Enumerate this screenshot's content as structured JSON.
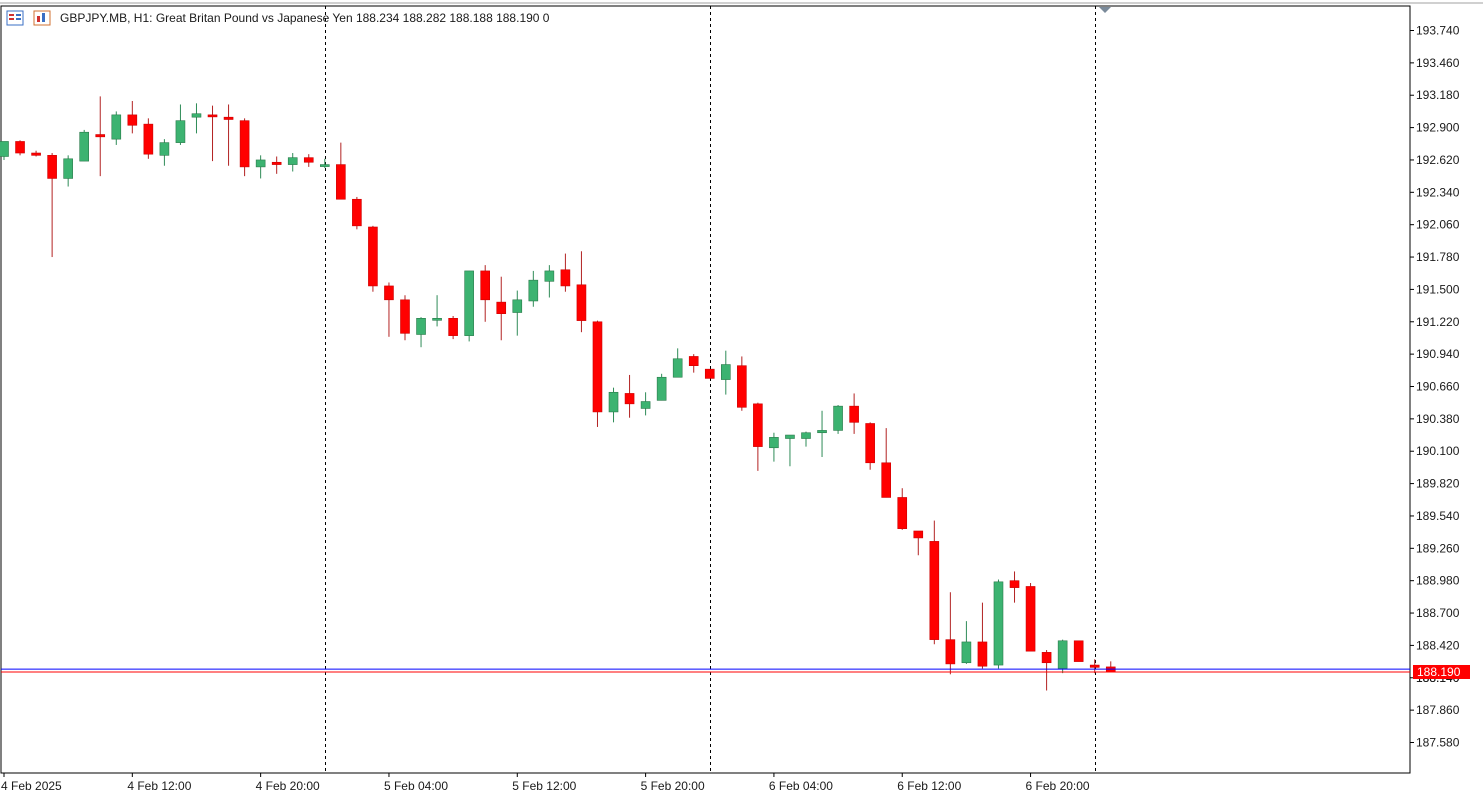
{
  "header": {
    "symbol_line": "GBPJPY.MB, H1:  Great Britan Pound vs Japanese Yen  188.234 188.282 188.188 188.190  0",
    "icon_menu": "chart-menu-icon",
    "icon_template": "chart-template-icon"
  },
  "colors": {
    "bull_body": "#3cb371",
    "bear_body": "#ff0000",
    "bull_wick": "#2e8b57",
    "bear_wick": "#b22222",
    "bid_line": "#0000ff",
    "ask_line": "#ff0000",
    "axis_text": "#1a1a1a",
    "separator": "#000000",
    "price_tag_bg": "#ff0000"
  },
  "chart_data": {
    "type": "candlestick",
    "title": "GBPJPY.MB, H1:  Great Britan Pound vs Japanese Yen",
    "ylim": [
      187.36,
      193.97
    ],
    "y_ticks": [
      193.74,
      193.46,
      193.18,
      192.9,
      192.62,
      192.34,
      192.06,
      191.78,
      191.5,
      191.22,
      190.94,
      190.66,
      190.38,
      190.1,
      189.82,
      189.54,
      189.26,
      188.98,
      188.7,
      188.42,
      188.14,
      187.86,
      187.58
    ],
    "y_tick_labels": [
      "193.740",
      "193.460",
      "193.180",
      "192.900",
      "192.620",
      "192.340",
      "192.060",
      "191.780",
      "191.500",
      "191.220",
      "190.940",
      "190.660",
      "190.380",
      "190.100",
      "189.820",
      "189.540",
      "189.260",
      "188.980",
      "188.700",
      "188.420",
      "188.140",
      "187.860",
      "187.580"
    ],
    "x_labels": [
      {
        "bar": 0,
        "text": "4 Feb 2025"
      },
      {
        "bar": 8,
        "text": "4 Feb 12:00"
      },
      {
        "bar": 16,
        "text": "4 Feb 20:00"
      },
      {
        "bar": 24,
        "text": "5 Feb 04:00"
      },
      {
        "bar": 32,
        "text": "5 Feb 12:00"
      },
      {
        "bar": 40,
        "text": "5 Feb 20:00"
      },
      {
        "bar": 48,
        "text": "6 Feb 04:00"
      },
      {
        "bar": 56,
        "text": "6 Feb 12:00"
      },
      {
        "bar": 64,
        "text": "6 Feb 20:00"
      }
    ],
    "day_separators": [
      20,
      44,
      68
    ],
    "current_price": 188.19,
    "current_price_label": "188.190",
    "hidden_tick_label": "188.140",
    "bid_line": 188.215,
    "ask_line": 188.19,
    "ohlc": [
      [
        192.65,
        192.78,
        192.62,
        192.78
      ],
      [
        192.78,
        192.79,
        192.66,
        192.68
      ],
      [
        192.68,
        192.7,
        192.65,
        192.66
      ],
      [
        192.66,
        192.68,
        191.78,
        192.46
      ],
      [
        192.46,
        192.66,
        192.39,
        192.63
      ],
      [
        192.61,
        192.88,
        192.61,
        192.86
      ],
      [
        192.84,
        193.17,
        192.48,
        192.82
      ],
      [
        192.8,
        193.04,
        192.75,
        193.01
      ],
      [
        193.01,
        193.13,
        192.85,
        192.92
      ],
      [
        192.93,
        192.98,
        192.63,
        192.67
      ],
      [
        192.66,
        192.8,
        192.57,
        192.77
      ],
      [
        192.77,
        193.1,
        192.75,
        192.96
      ],
      [
        192.99,
        193.11,
        192.85,
        193.02
      ],
      [
        193.01,
        193.09,
        192.61,
        193.0
      ],
      [
        192.99,
        193.1,
        192.57,
        192.97
      ],
      [
        192.96,
        192.98,
        192.48,
        192.56
      ],
      [
        192.56,
        192.66,
        192.46,
        192.62
      ],
      [
        192.6,
        192.65,
        192.5,
        192.58
      ],
      [
        192.58,
        192.68,
        192.52,
        192.64
      ],
      [
        192.64,
        192.67,
        192.56,
        192.6
      ],
      [
        192.57,
        192.63,
        192.55,
        192.58
      ],
      [
        192.58,
        192.77,
        192.3,
        192.28
      ],
      [
        192.28,
        192.3,
        192.02,
        192.05
      ],
      [
        192.04,
        192.05,
        191.48,
        191.53
      ],
      [
        191.53,
        191.56,
        191.09,
        191.41
      ],
      [
        191.41,
        191.45,
        191.06,
        191.12
      ],
      [
        191.11,
        191.26,
        191.0,
        191.25
      ],
      [
        191.24,
        191.45,
        191.18,
        191.25
      ],
      [
        191.25,
        191.27,
        191.07,
        191.1
      ],
      [
        191.1,
        191.66,
        191.05,
        191.66
      ],
      [
        191.66,
        191.71,
        191.22,
        191.41
      ],
      [
        191.39,
        191.61,
        191.06,
        191.29
      ],
      [
        191.3,
        191.49,
        191.1,
        191.41
      ],
      [
        191.4,
        191.66,
        191.35,
        191.58
      ],
      [
        191.57,
        191.71,
        191.43,
        191.66
      ],
      [
        191.67,
        191.81,
        191.48,
        191.53
      ],
      [
        191.54,
        191.83,
        191.13,
        191.23
      ],
      [
        191.22,
        191.23,
        190.31,
        190.44
      ],
      [
        190.44,
        190.65,
        190.35,
        190.61
      ],
      [
        190.6,
        190.76,
        190.39,
        190.51
      ],
      [
        190.47,
        190.61,
        190.41,
        190.53
      ],
      [
        190.54,
        190.77,
        190.54,
        190.74
      ],
      [
        190.74,
        190.99,
        190.74,
        190.9
      ],
      [
        190.92,
        190.94,
        190.78,
        190.84
      ],
      [
        190.81,
        190.81,
        190.73,
        190.73
      ],
      [
        190.72,
        190.97,
        190.59,
        190.85
      ],
      [
        190.84,
        190.92,
        190.45,
        190.48
      ],
      [
        190.51,
        190.52,
        189.93,
        190.14
      ],
      [
        190.13,
        190.26,
        190.01,
        190.22
      ],
      [
        190.21,
        190.24,
        189.97,
        190.24
      ],
      [
        190.21,
        190.27,
        190.14,
        190.26
      ],
      [
        190.26,
        190.45,
        190.05,
        190.28
      ],
      [
        190.28,
        190.5,
        190.25,
        190.49
      ],
      [
        190.49,
        190.6,
        190.25,
        190.35
      ],
      [
        190.34,
        190.35,
        189.94,
        190.0
      ],
      [
        190.0,
        190.3,
        189.7,
        189.7
      ],
      [
        189.7,
        189.78,
        189.42,
        189.43
      ],
      [
        189.41,
        189.35,
        189.2,
        189.35
      ],
      [
        189.32,
        189.5,
        188.43,
        188.47
      ],
      [
        188.47,
        188.88,
        188.17,
        188.26
      ],
      [
        188.27,
        188.63,
        188.26,
        188.45
      ],
      [
        188.45,
        188.79,
        188.22,
        188.24
      ],
      [
        188.25,
        188.99,
        188.22,
        188.97
      ],
      [
        188.98,
        189.06,
        188.79,
        188.92
      ],
      [
        188.93,
        188.96,
        188.38,
        188.37
      ],
      [
        188.36,
        188.38,
        188.03,
        188.27
      ],
      [
        188.22,
        188.47,
        188.18,
        188.46
      ],
      [
        188.46,
        188.46,
        188.28,
        188.28
      ],
      [
        188.25,
        188.3,
        188.18,
        188.23
      ],
      [
        188.234,
        188.282,
        188.188,
        188.19
      ]
    ]
  }
}
